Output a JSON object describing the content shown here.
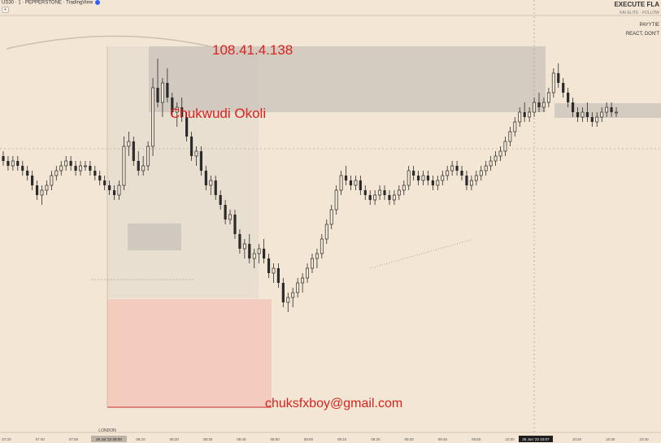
{
  "header": {
    "symbol_line": "US30 · 1 · PEPPERSTONE · TradingView",
    "button": "+"
  },
  "top_right": {
    "title": "EXECUTE FLA",
    "subtitle": "KAI ELITE · FOLLOW",
    "line1": "PAYYTIE",
    "line2": "REACT, DON'T"
  },
  "watermarks": {
    "ip": "108.41.4.138",
    "name": "Chukwudi Okoli",
    "email": "chuksfxboy@gmail.com"
  },
  "session_label": "LONDON",
  "colors": {
    "background": "#f3e6d4",
    "candle": "#2b2b2b",
    "zone_gray": "#c9c3bb",
    "zone_red": "#f2c7b9",
    "zone_red_border": "#c9302c",
    "watermark": "#d9231e",
    "axis_text": "#555555",
    "highlight_label_bg": "#1e1e1e"
  },
  "chart_data": {
    "type": "candlestick",
    "x_ticks": [
      "07:20",
      "07:40",
      "07:50",
      "08:00",
      "08:10",
      "08:20",
      "08:30",
      "08:40",
      "08:50",
      "09:00",
      "09:10",
      "09:20",
      "09:30",
      "09:40",
      "09:50",
      "10:00",
      "10:10",
      "10:20",
      "10:30",
      "10:40"
    ],
    "highlight_labels": [
      "25 Jul '22 08:00",
      "25 Jun '22 10:07"
    ],
    "price_range": [
      30,
      98
    ],
    "candles": [
      [
        76,
        77,
        74,
        75
      ],
      [
        75,
        76,
        73,
        74
      ],
      [
        74,
        76,
        73,
        75
      ],
      [
        75,
        76,
        73,
        74
      ],
      [
        74,
        75,
        72,
        73
      ],
      [
        73,
        74,
        71,
        72
      ],
      [
        72,
        73,
        69,
        70
      ],
      [
        70,
        71,
        67,
        68
      ],
      [
        68,
        70,
        66,
        69
      ],
      [
        69,
        71,
        68,
        70
      ],
      [
        70,
        73,
        69,
        72
      ],
      [
        72,
        74,
        71,
        73
      ],
      [
        73,
        75,
        72,
        74
      ],
      [
        74,
        76,
        73,
        75
      ],
      [
        75,
        76,
        73,
        74
      ],
      [
        74,
        75,
        72,
        73
      ],
      [
        73,
        75,
        72,
        74
      ],
      [
        74,
        75,
        73,
        74
      ],
      [
        74,
        75,
        72,
        73
      ],
      [
        73,
        74,
        71,
        72
      ],
      [
        72,
        73,
        70,
        71
      ],
      [
        71,
        72,
        69,
        70
      ],
      [
        70,
        71,
        68,
        69
      ],
      [
        69,
        70,
        67,
        68
      ],
      [
        68,
        71,
        67,
        70
      ],
      [
        70,
        80,
        69,
        78
      ],
      [
        78,
        81,
        76,
        79
      ],
      [
        79,
        80,
        74,
        75
      ],
      [
        75,
        77,
        72,
        73
      ],
      [
        73,
        76,
        72,
        74
      ],
      [
        74,
        79,
        73,
        78
      ],
      [
        78,
        92,
        76,
        90
      ],
      [
        90,
        96,
        86,
        87
      ],
      [
        87,
        92,
        84,
        91
      ],
      [
        91,
        94,
        87,
        88
      ],
      [
        88,
        89,
        84,
        85
      ],
      [
        85,
        87,
        82,
        86
      ],
      [
        86,
        88,
        83,
        84
      ],
      [
        84,
        85,
        79,
        80
      ],
      [
        80,
        81,
        75,
        76
      ],
      [
        76,
        78,
        74,
        77
      ],
      [
        77,
        78,
        72,
        73
      ],
      [
        73,
        74,
        69,
        70
      ],
      [
        70,
        72,
        68,
        71
      ],
      [
        71,
        72,
        67,
        68
      ],
      [
        68,
        69,
        65,
        66
      ],
      [
        66,
        67,
        62,
        63
      ],
      [
        63,
        65,
        62,
        64
      ],
      [
        64,
        65,
        59,
        60
      ],
      [
        60,
        61,
        56,
        57
      ],
      [
        57,
        59,
        55,
        58
      ],
      [
        58,
        60,
        54,
        55
      ],
      [
        55,
        57,
        53,
        56
      ],
      [
        56,
        58,
        54,
        57
      ],
      [
        57,
        59,
        54,
        55
      ],
      [
        55,
        56,
        51,
        52
      ],
      [
        52,
        54,
        50,
        53
      ],
      [
        53,
        54,
        49,
        50
      ],
      [
        50,
        51,
        45,
        46
      ],
      [
        46,
        48,
        44,
        47
      ],
      [
        47,
        49,
        45,
        48
      ],
      [
        48,
        51,
        47,
        50
      ],
      [
        50,
        52,
        48,
        51
      ],
      [
        51,
        54,
        50,
        53
      ],
      [
        53,
        56,
        52,
        55
      ],
      [
        55,
        57,
        53,
        56
      ],
      [
        56,
        60,
        55,
        59
      ],
      [
        59,
        63,
        58,
        62
      ],
      [
        62,
        66,
        61,
        65
      ],
      [
        65,
        70,
        64,
        69
      ],
      [
        69,
        73,
        68,
        72
      ],
      [
        72,
        74,
        70,
        71
      ],
      [
        71,
        72,
        69,
        70
      ],
      [
        70,
        72,
        69,
        71
      ],
      [
        71,
        72,
        68,
        69
      ],
      [
        69,
        70,
        67,
        68
      ],
      [
        68,
        69,
        66,
        67
      ],
      [
        67,
        69,
        66,
        68
      ],
      [
        68,
        70,
        67,
        69
      ],
      [
        69,
        70,
        67,
        68
      ],
      [
        68,
        69,
        66,
        67
      ],
      [
        67,
        69,
        66,
        68
      ],
      [
        68,
        70,
        67,
        69
      ],
      [
        69,
        71,
        68,
        70
      ],
      [
        70,
        74,
        69,
        73
      ],
      [
        73,
        74,
        71,
        72
      ],
      [
        72,
        73,
        70,
        71
      ],
      [
        71,
        73,
        70,
        72
      ],
      [
        72,
        73,
        70,
        71
      ],
      [
        71,
        72,
        69,
        70
      ],
      [
        70,
        72,
        69,
        71
      ],
      [
        71,
        73,
        70,
        72
      ],
      [
        72,
        74,
        71,
        73
      ],
      [
        73,
        75,
        72,
        74
      ],
      [
        74,
        75,
        72,
        73
      ],
      [
        73,
        74,
        71,
        72
      ],
      [
        72,
        73,
        69,
        70
      ],
      [
        70,
        72,
        69,
        71
      ],
      [
        71,
        73,
        70,
        72
      ],
      [
        72,
        74,
        71,
        73
      ],
      [
        73,
        75,
        72,
        74
      ],
      [
        74,
        76,
        73,
        75
      ],
      [
        75,
        77,
        74,
        76
      ],
      [
        76,
        78,
        75,
        77
      ],
      [
        77,
        80,
        76,
        79
      ],
      [
        79,
        82,
        78,
        81
      ],
      [
        81,
        84,
        80,
        83
      ],
      [
        83,
        86,
        82,
        85
      ],
      [
        85,
        87,
        83,
        84
      ],
      [
        84,
        86,
        83,
        85
      ],
      [
        85,
        88,
        84,
        87
      ],
      [
        87,
        89,
        85,
        86
      ],
      [
        86,
        88,
        85,
        87
      ],
      [
        87,
        90,
        86,
        89
      ],
      [
        89,
        94,
        88,
        93
      ],
      [
        93,
        95,
        90,
        91
      ],
      [
        91,
        92,
        88,
        89
      ],
      [
        89,
        90,
        86,
        87
      ],
      [
        87,
        88,
        84,
        85
      ],
      [
        85,
        86,
        83,
        84
      ],
      [
        84,
        86,
        83,
        85
      ],
      [
        85,
        87,
        83,
        84
      ],
      [
        84,
        85,
        82,
        83
      ],
      [
        83,
        85,
        82,
        84
      ],
      [
        84,
        86,
        83,
        85
      ],
      [
        85,
        87,
        84,
        86
      ],
      [
        86,
        87,
        84,
        85
      ],
      [
        85,
        86,
        84,
        85
      ]
    ]
  }
}
